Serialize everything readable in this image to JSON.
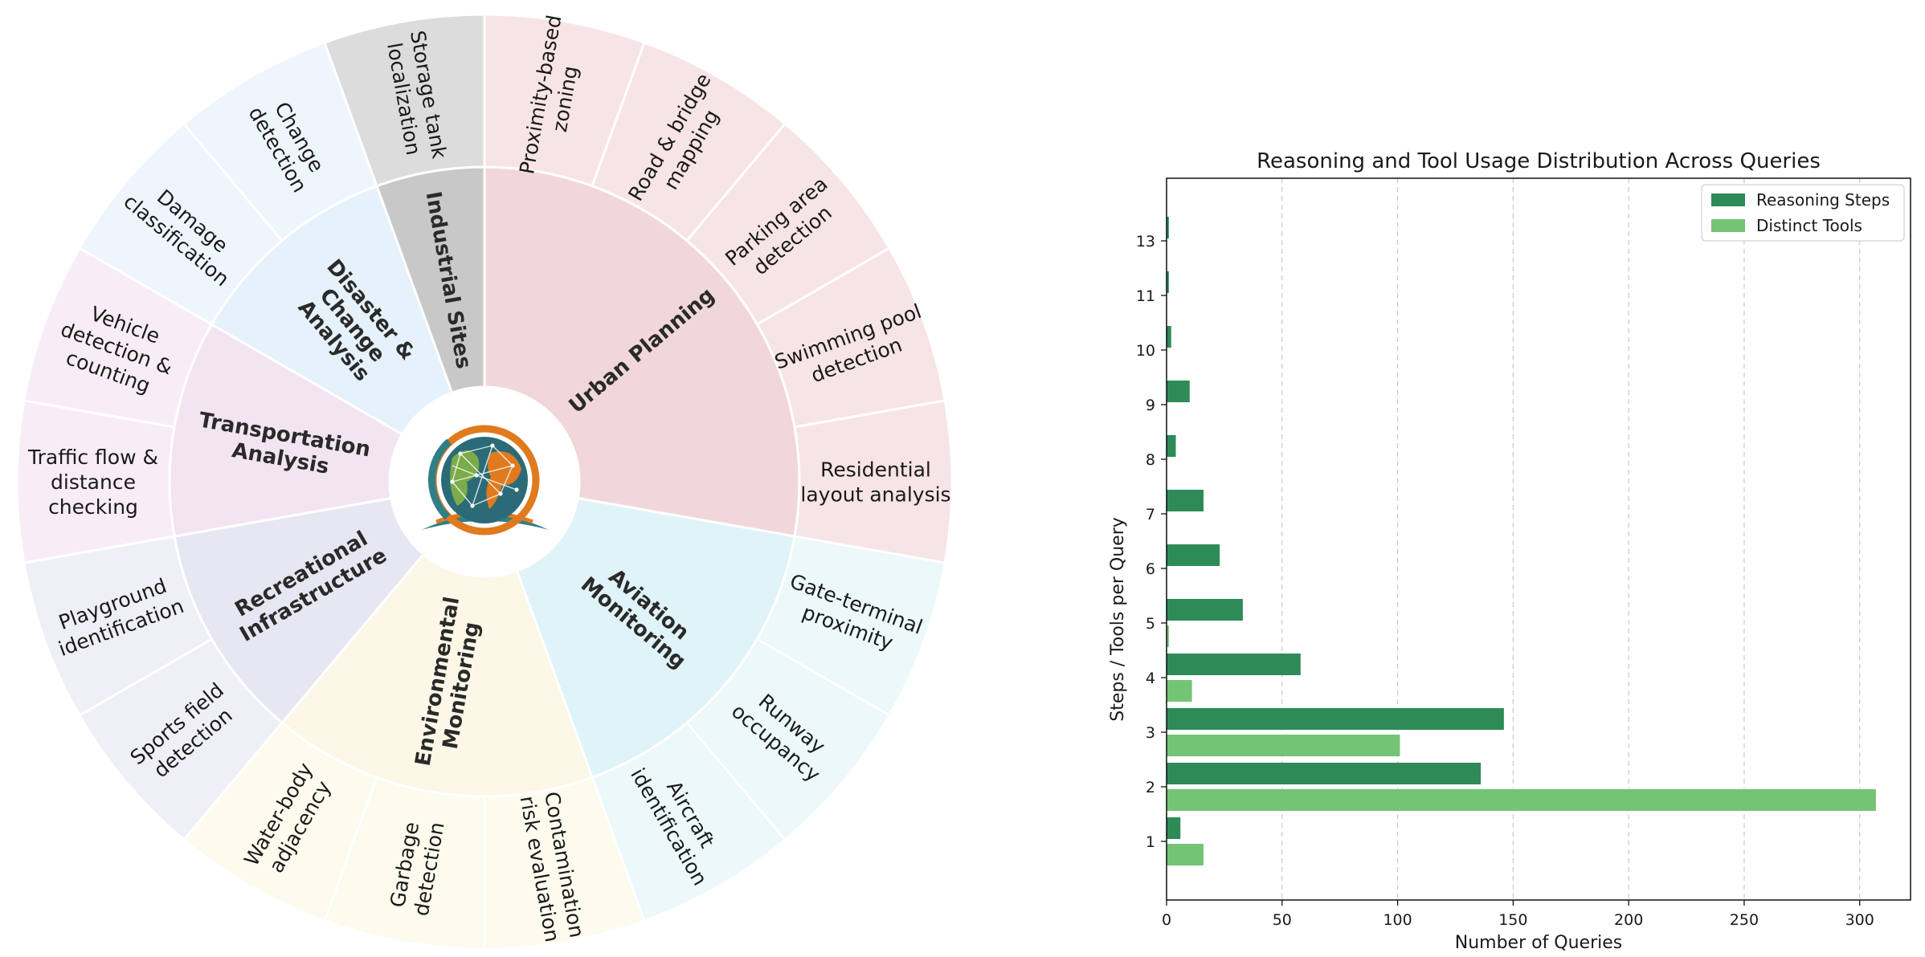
{
  "colors": {
    "reasoning": "#2e8b57",
    "tools": "#74c476",
    "grid": "#c8c8c8",
    "axis": "#000000"
  },
  "sunburst": {
    "categories": [
      {
        "name": "Urban Planning",
        "lines": [
          "Urban Planning"
        ],
        "inner_color": "#f2d7da",
        "outer_color": "#f7e4e6",
        "tasks": [
          {
            "name": "Proximity-based zoning",
            "lines": [
              "Proximity-based",
              "zoning"
            ]
          },
          {
            "name": "Road & bridge mapping",
            "lines": [
              "Road & bridge",
              "mapping"
            ]
          },
          {
            "name": "Parking area detection",
            "lines": [
              "Parking area",
              "detection"
            ]
          },
          {
            "name": "Swimming pool detection",
            "lines": [
              "Swimming pool",
              "detection"
            ]
          },
          {
            "name": "Residential layout analysis",
            "lines": [
              "Residential",
              "layout analysis"
            ]
          }
        ]
      },
      {
        "name": "Aviation Monitoring",
        "lines": [
          "Aviation",
          "Monitoring"
        ],
        "inner_color": "#e0f3f8",
        "outer_color": "#ecf8f9",
        "tasks": [
          {
            "name": "Gate-terminal proximity",
            "lines": [
              "Gate-terminal",
              "proximity"
            ]
          },
          {
            "name": "Runway occupancy",
            "lines": [
              "Runway",
              "occupancy"
            ]
          },
          {
            "name": "Aircraft identification",
            "lines": [
              "Aircraft",
              "identification"
            ]
          }
        ]
      },
      {
        "name": "Environmental Monitoring",
        "lines": [
          "Environmental",
          "Monitoring"
        ],
        "inner_color": "#fcf7e6",
        "outer_color": "#fdfaee",
        "tasks": [
          {
            "name": "Contamination risk evaluation",
            "lines": [
              "Contamination",
              "risk evaluation"
            ]
          },
          {
            "name": "Garbage detection",
            "lines": [
              "Garbage",
              "detection"
            ]
          },
          {
            "name": "Water-body adjacency",
            "lines": [
              "Water-body",
              "adjacency"
            ]
          }
        ]
      },
      {
        "name": "Recreational Infrastructure",
        "lines": [
          "Recreational",
          "Infrastructure"
        ],
        "inner_color": "#e7e7f3",
        "outer_color": "#efeff7",
        "tasks": [
          {
            "name": "Sports field detection",
            "lines": [
              "Sports field",
              "detection"
            ]
          },
          {
            "name": "Playground identification",
            "lines": [
              "Playground",
              "identification"
            ]
          }
        ]
      },
      {
        "name": "Transportation Analysis",
        "lines": [
          "Transportation",
          "Analysis"
        ],
        "inner_color": "#f3e4f2",
        "outer_color": "#f8edf6",
        "tasks": [
          {
            "name": "Traffic flow & distance checking",
            "lines": [
              "Traffic flow &",
              "distance",
              "checking"
            ]
          },
          {
            "name": "Vehicle detection & counting",
            "lines": [
              "Vehicle",
              "detection &",
              "counting"
            ]
          }
        ]
      },
      {
        "name": "Disaster & Change Analysis",
        "lines": [
          "Disaster &",
          "Change",
          "Analysis"
        ],
        "inner_color": "#e5f1fb",
        "outer_color": "#eef5fc",
        "tasks": [
          {
            "name": "Damage classification",
            "lines": [
              "Damage",
              "classification"
            ]
          },
          {
            "name": "Change detection",
            "lines": [
              "Change",
              "detection"
            ]
          }
        ]
      },
      {
        "name": "Industrial Sites",
        "lines": [
          "Industrial Sites"
        ],
        "inner_color": "#c8c8c8",
        "outer_color": "#dcdcdc",
        "tasks": [
          {
            "name": "Storage tank localization",
            "lines": [
              "Storage tank",
              "localization"
            ]
          }
        ]
      }
    ]
  },
  "chart_data": {
    "type": "bar",
    "orientation": "horizontal",
    "title": "Reasoning and Tool Usage Distribution Across Queries",
    "xlabel": "Number of Queries",
    "ylabel": "Steps / Tools per Query",
    "categories": [
      "1",
      "2",
      "3",
      "4",
      "5",
      "6",
      "7",
      "8",
      "9",
      "10",
      "11",
      "13"
    ],
    "series": [
      {
        "name": "Reasoning Steps",
        "values": [
          6,
          136,
          146,
          58,
          33,
          23,
          16,
          4,
          10,
          2,
          1,
          1
        ]
      },
      {
        "name": "Distinct Tools",
        "values": [
          16,
          307,
          101,
          11,
          1,
          0,
          0,
          0,
          0,
          0,
          0,
          0
        ]
      }
    ],
    "xlim": [
      0,
      322
    ],
    "xticks": [
      0,
      50,
      100,
      150,
      200,
      250,
      300
    ],
    "grid": "vertical dashed",
    "legend": "top-right"
  }
}
